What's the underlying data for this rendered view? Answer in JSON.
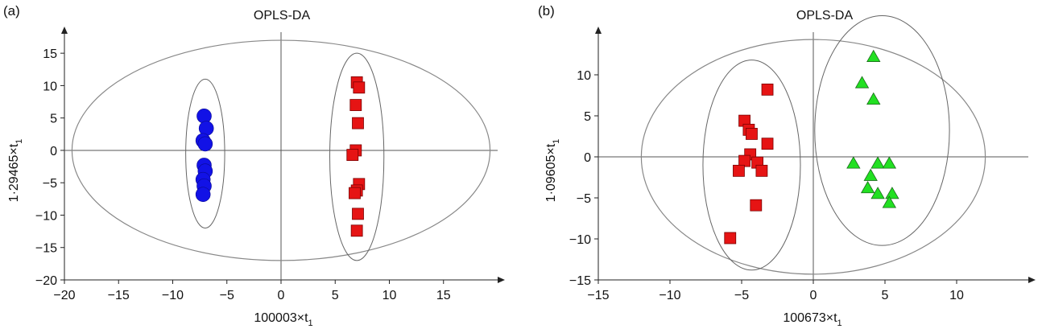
{
  "chart_data": [
    {
      "type": "scatter",
      "panel_label": "(a)",
      "title": "OPLS-DA",
      "xlabel": "100003×t",
      "xlabel_sub": "1",
      "ylabel": "1·29465×t",
      "ylabel_sub": "1",
      "xlim": [
        -20,
        20
      ],
      "ylim": [
        -20,
        18
      ],
      "xticks": [
        -20,
        -15,
        -10,
        -5,
        0,
        5,
        10,
        15
      ],
      "yticks": [
        -20,
        -15,
        -10,
        -5,
        0,
        5,
        10,
        15
      ],
      "grid": false,
      "confidence_ellipse": {
        "cx": 0,
        "cy": 0,
        "rx": 19.3,
        "ry": 17
      },
      "series": [
        {
          "marker": "circle",
          "color": "#1212e6",
          "group_ellipse": {
            "cx": -7.0,
            "cy": -0.5,
            "rx": 1.8,
            "ry": 11.5
          },
          "points": [
            [
              -7.1,
              5.3
            ],
            [
              -6.9,
              3.4
            ],
            [
              -7.2,
              1.5
            ],
            [
              -7.0,
              1.0
            ],
            [
              -7.1,
              -2.3
            ],
            [
              -7.0,
              -3.2
            ],
            [
              -7.2,
              -4.5
            ],
            [
              -7.1,
              -5.5
            ],
            [
              -7.2,
              -6.8
            ]
          ]
        },
        {
          "marker": "square",
          "color": "#e61414",
          "group_ellipse": {
            "cx": 7.0,
            "cy": -1.0,
            "rx": 2.5,
            "ry": 16.0
          },
          "points": [
            [
              7.0,
              10.5
            ],
            [
              7.2,
              9.7
            ],
            [
              6.9,
              7.0
            ],
            [
              7.1,
              4.2
            ],
            [
              6.9,
              0.0
            ],
            [
              6.6,
              -0.7
            ],
            [
              7.2,
              -5.2
            ],
            [
              7.0,
              -6.2
            ],
            [
              6.8,
              -6.6
            ],
            [
              7.1,
              -9.8
            ],
            [
              7.0,
              -12.4
            ]
          ]
        }
      ]
    },
    {
      "type": "scatter",
      "panel_label": "(b)",
      "title": "OPLS-DA",
      "xlabel": "100673×t",
      "xlabel_sub": "1",
      "ylabel": "1·09605×t",
      "ylabel_sub": "1",
      "xlim": [
        -15,
        15
      ],
      "ylim": [
        -15,
        15
      ],
      "xticks": [
        -15,
        -10,
        -5,
        0,
        5,
        10
      ],
      "yticks": [
        -15,
        -10,
        -5,
        0,
        5,
        10
      ],
      "grid": false,
      "confidence_ellipse": {
        "cx": 0,
        "cy": 0,
        "rx": 12.0,
        "ry": 14.3
      },
      "series": [
        {
          "marker": "square",
          "color": "#e61414",
          "group_ellipse": {
            "cx": -4.3,
            "cy": -1.0,
            "rx": 3.4,
            "ry": 12.8
          },
          "points": [
            [
              -3.2,
              8.2
            ],
            [
              -4.8,
              4.4
            ],
            [
              -4.5,
              3.3
            ],
            [
              -4.3,
              2.8
            ],
            [
              -3.2,
              1.6
            ],
            [
              -4.4,
              0.3
            ],
            [
              -4.8,
              -0.5
            ],
            [
              -3.9,
              -0.7
            ],
            [
              -5.2,
              -1.7
            ],
            [
              -3.6,
              -1.7
            ],
            [
              -4.0,
              -5.9
            ],
            [
              -5.8,
              -9.9
            ]
          ]
        },
        {
          "marker": "triangle",
          "color": "#22e022",
          "group_ellipse": {
            "cx": 4.8,
            "cy": 3.2,
            "rx": 4.7,
            "ry": 14.0
          },
          "points": [
            [
              4.2,
              12.2
            ],
            [
              3.4,
              9.0
            ],
            [
              4.2,
              7.0
            ],
            [
              2.8,
              -0.8
            ],
            [
              4.5,
              -0.8
            ],
            [
              5.3,
              -0.8
            ],
            [
              4.0,
              -2.3
            ],
            [
              3.8,
              -3.8
            ],
            [
              4.5,
              -4.5
            ],
            [
              5.5,
              -4.5
            ],
            [
              5.3,
              -5.6
            ]
          ]
        }
      ]
    }
  ]
}
